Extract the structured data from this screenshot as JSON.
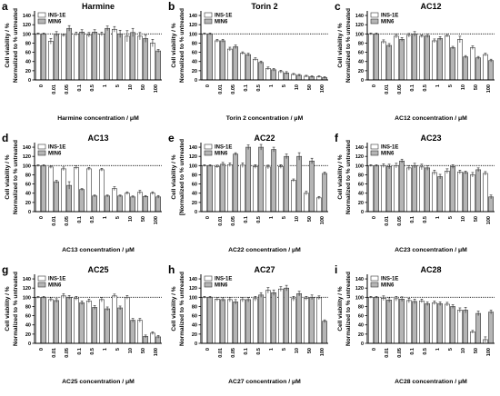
{
  "figure": {
    "panels_source": "chart_data"
  },
  "chart_data": [
    {
      "type": "bar",
      "panel_letter": "a",
      "title": "Harmine",
      "categories": [
        "0",
        "0.01",
        "0.05",
        "0.1",
        "0.5",
        "1",
        "5",
        "10",
        "50",
        "100"
      ],
      "series": [
        {
          "name": "INS-1E",
          "values": [
            100,
            84,
            97,
            100,
            98,
            100,
            110,
            95,
            95,
            80
          ]
        },
        {
          "name": "MIN6",
          "values": [
            100,
            100,
            112,
            104,
            104,
            112,
            100,
            103,
            90,
            63
          ]
        }
      ],
      "errors": [
        [
          2,
          6,
          3,
          4,
          5,
          4,
          6,
          12,
          8,
          8
        ],
        [
          2,
          5,
          6,
          5,
          5,
          5,
          8,
          9,
          8,
          3
        ]
      ],
      "xlabel": "Harmine concentration / μM",
      "ylabel": [
        "Cell viability / %",
        "Normalized to % untreated"
      ],
      "ylim": [
        0,
        150
      ],
      "yticks": [
        0,
        20,
        40,
        60,
        80,
        100,
        120,
        140
      ],
      "reference_line": 100,
      "legend": "top-left"
    },
    {
      "type": "bar",
      "panel_letter": "b",
      "title": "Torin 2",
      "categories": [
        "0",
        "0.01",
        "0.05",
        "0.1",
        "0.5",
        "1",
        "5",
        "10",
        "50",
        "100"
      ],
      "series": [
        {
          "name": "INS-1E",
          "values": [
            100,
            85,
            67,
            58,
            45,
            25,
            18,
            12,
            8,
            7
          ]
        },
        {
          "name": "MIN6",
          "values": [
            100,
            85,
            72,
            55,
            38,
            22,
            15,
            10,
            7,
            5
          ]
        }
      ],
      "errors": [
        [
          2,
          3,
          4,
          3,
          3,
          3,
          3,
          2,
          2,
          2
        ],
        [
          2,
          3,
          4,
          3,
          3,
          3,
          3,
          2,
          2,
          2
        ]
      ],
      "xlabel": "Torin 2 concentration / μM",
      "ylabel": [
        "Cell viability / %",
        "Normalized to % untreated"
      ],
      "ylim": [
        0,
        150
      ],
      "yticks": [
        0,
        20,
        40,
        60,
        80,
        100,
        120,
        140
      ],
      "reference_line": 100,
      "legend": "top-left"
    },
    {
      "type": "bar",
      "panel_letter": "c",
      "title": "AC12",
      "categories": [
        "0",
        "0.01",
        "0.05",
        "0.1",
        "0.5",
        "1",
        "5",
        "10",
        "50",
        "100"
      ],
      "series": [
        {
          "name": "INS-1E",
          "values": [
            100,
            83,
            95,
            97,
            95,
            85,
            96,
            88,
            70,
            55
          ]
        },
        {
          "name": "MIN6",
          "values": [
            100,
            75,
            88,
            100,
            96,
            90,
            70,
            50,
            48,
            42
          ]
        }
      ],
      "errors": [
        [
          2,
          4,
          4,
          4,
          3,
          4,
          3,
          7,
          4,
          3
        ],
        [
          2,
          4,
          4,
          5,
          4,
          4,
          3,
          3,
          3,
          3
        ]
      ],
      "xlabel": "AC12 concentration / μM",
      "ylabel": [
        "Cell viability / %",
        "Normalized to % untreated"
      ],
      "ylim": [
        0,
        150
      ],
      "yticks": [
        0,
        20,
        40,
        60,
        80,
        100,
        120,
        140
      ],
      "reference_line": 100,
      "legend": "top-left"
    },
    {
      "type": "bar",
      "panel_letter": "d",
      "title": "AC13",
      "categories": [
        "0",
        "0.01",
        "0.05",
        "0.1",
        "0.5",
        "1",
        "5",
        "10",
        "50",
        "100"
      ],
      "series": [
        {
          "name": "INS-1E",
          "values": [
            100,
            97,
            93,
            96,
            93,
            91,
            50,
            40,
            42,
            40
          ]
        },
        {
          "name": "MIN6",
          "values": [
            100,
            65,
            57,
            48,
            34,
            34,
            34,
            32,
            33,
            32
          ]
        }
      ],
      "errors": [
        [
          2,
          3,
          4,
          4,
          3,
          3,
          4,
          3,
          4,
          3
        ],
        [
          2,
          3,
          8,
          2,
          2,
          2,
          2,
          2,
          2,
          3
        ]
      ],
      "xlabel": "AC13 concentration / μM",
      "ylabel": [
        "Cell viability / %",
        "Normalized to % untreated"
      ],
      "ylim": [
        0,
        150
      ],
      "yticks": [
        0,
        20,
        40,
        60,
        80,
        100,
        120,
        140
      ],
      "reference_line": 100,
      "legend": "top-left"
    },
    {
      "type": "bar",
      "panel_letter": "e",
      "title": "AC22",
      "categories": [
        "0",
        "0.01",
        "0.05",
        "0.1",
        "0.5",
        "1",
        "5",
        "10",
        "50",
        "100"
      ],
      "series": [
        {
          "name": "INS-1E",
          "values": [
            100,
            98,
            102,
            101,
            98,
            97,
            98,
            68,
            40,
            30
          ]
        },
        {
          "name": "MIN6",
          "values": [
            100,
            103,
            125,
            140,
            140,
            135,
            120,
            120,
            110,
            83
          ]
        }
      ],
      "errors": [
        [
          2,
          3,
          4,
          5,
          4,
          4,
          4,
          3,
          4,
          3
        ],
        [
          2,
          4,
          3,
          5,
          6,
          5,
          5,
          8,
          6,
          3
        ]
      ],
      "xlabel": "AC22 concentration / μM",
      "ylabel": [
        "Cell viability / %",
        "[Normalized to % untreated"
      ],
      "ylim": [
        0,
        150
      ],
      "yticks": [
        0,
        20,
        40,
        60,
        80,
        100,
        120,
        140
      ],
      "reference_line": 100,
      "legend": "top-left"
    },
    {
      "type": "bar",
      "panel_letter": "f",
      "title": "AC23",
      "categories": [
        "0",
        "0.01",
        "0.05",
        "0.1",
        "0.5",
        "1",
        "5",
        "10",
        "50",
        "100"
      ],
      "series": [
        {
          "name": "INS-1E",
          "values": [
            100,
            100,
            100,
            95,
            97,
            85,
            88,
            86,
            80,
            83
          ]
        },
        {
          "name": "MIN6",
          "values": [
            100,
            98,
            110,
            100,
            95,
            76,
            98,
            85,
            91,
            32
          ]
        }
      ],
      "errors": [
        [
          2,
          4,
          5,
          5,
          6,
          5,
          5,
          4,
          5,
          4
        ],
        [
          2,
          5,
          4,
          5,
          5,
          5,
          4,
          3,
          4,
          4
        ]
      ],
      "xlabel": "AC23 concentration / μM",
      "ylabel": [
        "Cell viability / %",
        "Normalized to % untreated"
      ],
      "ylim": [
        0,
        150
      ],
      "yticks": [
        0,
        20,
        40,
        60,
        80,
        100,
        120,
        140
      ],
      "reference_line": 100,
      "legend": "top-left"
    },
    {
      "type": "bar",
      "panel_letter": "g",
      "title": "AC25",
      "categories": [
        "0",
        "0.01",
        "0.05",
        "0.1",
        "0.5",
        "1",
        "5",
        "10",
        "50",
        "100"
      ],
      "series": [
        {
          "name": "INS-1E",
          "values": [
            100,
            95,
            103,
            98,
            92,
            95,
            103,
            100,
            50,
            22
          ]
        },
        {
          "name": "MIN6",
          "values": [
            100,
            93,
            100,
            88,
            78,
            75,
            77,
            50,
            15,
            14
          ]
        }
      ],
      "errors": [
        [
          2,
          4,
          5,
          4,
          4,
          5,
          4,
          4,
          4,
          3
        ],
        [
          2,
          4,
          4,
          4,
          4,
          4,
          4,
          4,
          3,
          3
        ]
      ],
      "xlabel": "AC25 concentration / μM",
      "ylabel": [
        "Cell viability / %",
        "Normalized to % untreated"
      ],
      "ylim": [
        0,
        150
      ],
      "yticks": [
        0,
        20,
        40,
        60,
        80,
        100,
        120,
        140
      ],
      "reference_line": 100,
      "legend": "top-left"
    },
    {
      "type": "bar",
      "panel_letter": "h",
      "title": "AC27",
      "categories": [
        "0",
        "0.01",
        "0.05",
        "0.1",
        "0.5",
        "1",
        "5",
        "10",
        "50",
        "100"
      ],
      "series": [
        {
          "name": "INS-1E",
          "values": [
            100,
            96,
            95,
            95,
            97,
            115,
            118,
            97,
            98,
            99
          ]
        },
        {
          "name": "MIN6",
          "values": [
            100,
            95,
            90,
            95,
            105,
            110,
            120,
            108,
            100,
            48
          ]
        }
      ],
      "errors": [
        [
          2,
          4,
          5,
          5,
          5,
          6,
          5,
          5,
          4,
          4
        ],
        [
          2,
          4,
          5,
          5,
          5,
          6,
          6,
          5,
          5,
          3
        ]
      ],
      "xlabel": "AC27 concentration / μM",
      "ylabel": [
        "Cell viability / %",
        "Normalized to % untreated"
      ],
      "ylim": [
        0,
        150
      ],
      "yticks": [
        0,
        20,
        40,
        60,
        80,
        100,
        120,
        140
      ],
      "reference_line": 100,
      "legend": "top-left"
    },
    {
      "type": "bar",
      "panel_letter": "i",
      "title": "AC28",
      "categories": [
        "0",
        "0.01",
        "0.05",
        "0.1",
        "0.5",
        "1",
        "5",
        "10",
        "50",
        "100"
      ],
      "series": [
        {
          "name": "INS-1E",
          "values": [
            100,
            98,
            97,
            93,
            92,
            88,
            85,
            72,
            25,
            8
          ]
        },
        {
          "name": "MIN6",
          "values": [
            100,
            94,
            96,
            91,
            86,
            86,
            80,
            72,
            65,
            68
          ]
        }
      ],
      "errors": [
        [
          2,
          5,
          5,
          5,
          4,
          4,
          4,
          5,
          3,
          6
        ],
        [
          2,
          5,
          5,
          5,
          4,
          4,
          4,
          6,
          5,
          4
        ]
      ],
      "xlabel": "AC28 concentration / μM",
      "ylabel": [
        "Cell viability / %",
        "Normalized to % untreated"
      ],
      "ylim": [
        0,
        150
      ],
      "yticks": [
        0,
        20,
        40,
        60,
        80,
        100,
        120,
        140
      ],
      "reference_line": 100,
      "legend": "top-left"
    }
  ]
}
